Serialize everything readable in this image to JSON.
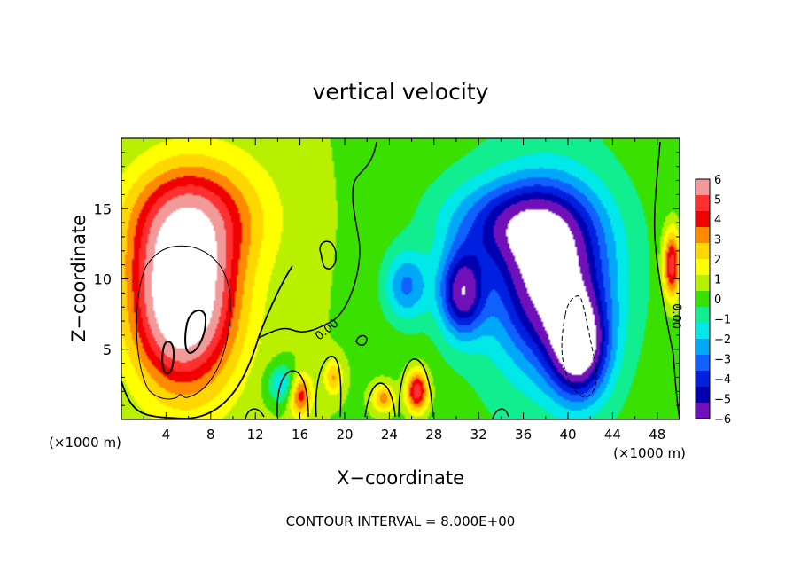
{
  "chart_data": {
    "type": "heatmap",
    "title": "vertical velocity",
    "xlabel": "X−coordinate",
    "ylabel": "Z−coordinate",
    "x_unit": "(×1000 m)",
    "x_unit_right": "(×1000 m)",
    "xlim": [
      0,
      50
    ],
    "ylim": [
      0,
      20
    ],
    "xticks": [
      4,
      8,
      12,
      16,
      20,
      24,
      28,
      32,
      36,
      40,
      44,
      48
    ],
    "xtick_labels": [
      "4",
      "8",
      "12",
      "16",
      "20",
      "24",
      "28",
      "32",
      "36",
      "40",
      "44",
      "48"
    ],
    "yticks": [
      5,
      10,
      15
    ],
    "ytick_labels": [
      "5",
      "10",
      "15"
    ],
    "colorbar": {
      "levels": [
        6,
        5,
        4,
        3,
        2,
        1,
        0,
        -1,
        -2,
        -3,
        -4,
        -5,
        -6
      ],
      "labels": [
        "6",
        "5",
        "4",
        "3",
        "2",
        "1",
        "0",
        "−1",
        "−2",
        "−3",
        "−4",
        "−5",
        "−6"
      ],
      "colors": [
        "#f29a9a",
        "#ff3030",
        "#f00000",
        "#ff8a00",
        "#ffd700",
        "#ffff00",
        "#b8f000",
        "#3ae000",
        "#10ee90",
        "#00e8e8",
        "#00a8f8",
        "#1060ff",
        "#0020e0",
        "#0000b0",
        "#7010b8"
      ]
    },
    "contour_labels": [
      "0.00",
      "0.00"
    ],
    "footer": "CONTOUR INTERVAL = 8.000E+00",
    "features": [
      {
        "kind": "updraft",
        "x": 5.5,
        "z": 8.5,
        "sx": 4.5,
        "sz": 6.0,
        "value": 8
      },
      {
        "kind": "updraft",
        "x": 6.5,
        "z": 14.5,
        "sx": 6.0,
        "sz": 4.0,
        "value": 3.5
      },
      {
        "kind": "updraft",
        "x": 16.0,
        "z": 1.8,
        "sx": 1.0,
        "sz": 1.5,
        "value": 4
      },
      {
        "kind": "updraft",
        "x": 26.5,
        "z": 2.0,
        "sx": 1.0,
        "sz": 1.5,
        "value": 5
      },
      {
        "kind": "updraft",
        "x": 19.0,
        "z": 3.0,
        "sx": 0.8,
        "sz": 1.2,
        "value": 2.5
      },
      {
        "kind": "updraft",
        "x": 23.5,
        "z": 1.5,
        "sx": 1.0,
        "sz": 1.0,
        "value": 3
      },
      {
        "kind": "updraft",
        "x": 49.3,
        "z": 11.0,
        "sx": 0.8,
        "sz": 2.5,
        "value": 5
      },
      {
        "kind": "downdraft",
        "x": 38.5,
        "z": 10.0,
        "sx": 5.0,
        "sz": 6.0,
        "value": -7
      },
      {
        "kind": "downdraft",
        "x": 41.0,
        "z": 5.0,
        "sx": 2.5,
        "sz": 3.5,
        "value": -6
      },
      {
        "kind": "downdraft",
        "x": 30.5,
        "z": 9.0,
        "sx": 2.0,
        "sz": 3.0,
        "value": -5.5
      },
      {
        "kind": "downdraft",
        "x": 25.5,
        "z": 9.5,
        "sx": 2.0,
        "sz": 2.5,
        "value": -3
      },
      {
        "kind": "downdraft",
        "x": 35.0,
        "z": 14.0,
        "sx": 6.0,
        "sz": 3.0,
        "value": -3.5
      },
      {
        "kind": "downdraft",
        "x": 14.5,
        "z": 2.5,
        "sx": 1.5,
        "sz": 1.5,
        "value": -2.5
      }
    ]
  }
}
